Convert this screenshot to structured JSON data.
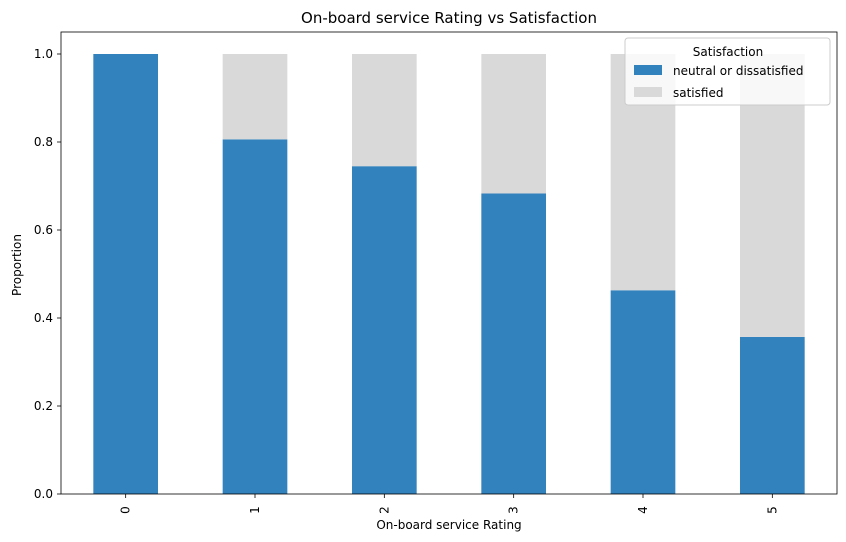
{
  "chart_data": {
    "type": "bar",
    "stacked": true,
    "title": "On-board service Rating vs Satisfaction",
    "xlabel": "On-board service Rating",
    "ylabel": "Proportion",
    "categories": [
      "0",
      "1",
      "2",
      "3",
      "4",
      "5"
    ],
    "ylim": [
      0,
      1.05
    ],
    "yticks": [
      "0.0",
      "0.2",
      "0.4",
      "0.6",
      "0.8",
      "1.0"
    ],
    "series": [
      {
        "name": "neutral or dissatisfied",
        "color": "#3182bd",
        "values": [
          1.0,
          0.806,
          0.745,
          0.683,
          0.463,
          0.357
        ]
      },
      {
        "name": "satisfied",
        "color": "#d9d9d9",
        "values": [
          0.0,
          0.194,
          0.255,
          0.317,
          0.537,
          0.643
        ]
      }
    ],
    "legend": {
      "title": "Satisfaction",
      "placement": "top-right"
    },
    "grid": false
  }
}
